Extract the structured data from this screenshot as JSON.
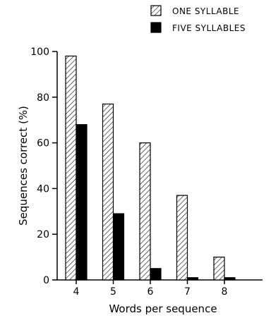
{
  "chart_data": {
    "type": "bar",
    "categories": [
      "4",
      "5",
      "6",
      "7",
      "8"
    ],
    "series": [
      {
        "name": "ONE SYLLABLE",
        "values": [
          98,
          77,
          60,
          37,
          10
        ],
        "pattern": "hatched"
      },
      {
        "name": "FIVE SYLLABLES",
        "values": [
          68,
          29,
          5,
          1,
          1
        ],
        "pattern": "solid"
      }
    ],
    "title": "",
    "xlabel": "Words per sequence",
    "ylabel": "Sequences correct (%)",
    "ylim": [
      0,
      100
    ],
    "yticks": [
      "0",
      "20",
      "40",
      "60",
      "80",
      "100"
    ],
    "grid": false,
    "legend_position": "top-right",
    "colors": {
      "solid": "#000000",
      "hatch": "#000000",
      "background": "#ffffff"
    }
  }
}
